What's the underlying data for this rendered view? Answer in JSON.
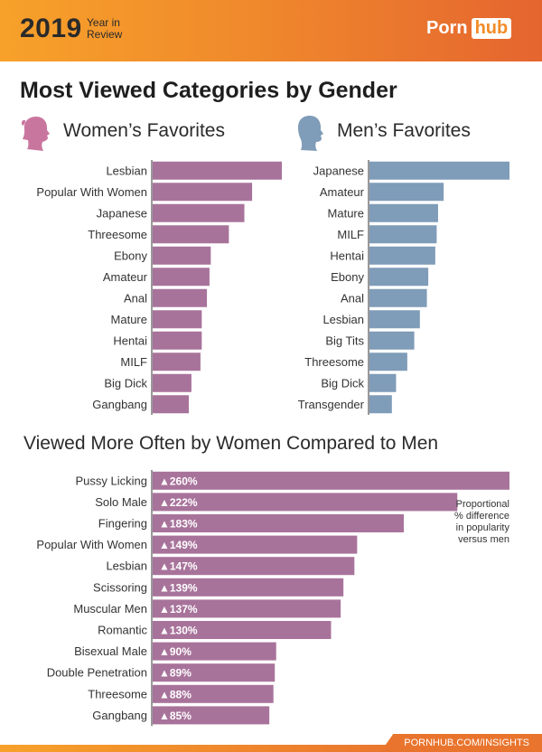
{
  "header": {
    "year": "2019",
    "subtitle_line1": "Year in",
    "subtitle_line2": "Review",
    "logo_text": "Porn",
    "logo_badge": "hub"
  },
  "title": "Most Viewed Categories by Gender",
  "colors": {
    "women_bar": "#a8739b",
    "men_bar": "#7f9cb8",
    "diff_bar": "#a8739b",
    "women_icon": "#c9769f",
    "men_icon": "#7f9cb8",
    "accent": "#f28c28"
  },
  "women_panel": {
    "label": "Women’s Favorites",
    "icon": "woman-head-icon"
  },
  "men_panel": {
    "label": "Men’s Favorites",
    "icon": "man-head-icon"
  },
  "section2_title": "Viewed More Often by Women Compared to Men",
  "note": [
    "Proportional",
    "% difference",
    "in popularity",
    "versus men"
  ],
  "footer": {
    "link": "PORNHUB.COM/INSIGHTS"
  },
  "chart_data": [
    {
      "type": "bar",
      "orientation": "horizontal",
      "series_name": "Women’s Favorites",
      "categories": [
        "Lesbian",
        "Popular With Women",
        "Japanese",
        "Threesome",
        "Ebony",
        "Amateur",
        "Anal",
        "Mature",
        "Hentai",
        "MILF",
        "Big Dick",
        "Gangbang"
      ],
      "values": [
        100,
        77,
        71,
        59,
        45,
        44,
        42,
        38,
        38,
        37,
        30,
        28
      ]
    },
    {
      "type": "bar",
      "orientation": "horizontal",
      "series_name": "Men’s Favorites",
      "categories": [
        "Japanese",
        "Amateur",
        "Mature",
        "MILF",
        "Hentai",
        "Ebony",
        "Anal",
        "Lesbian",
        "Big Tits",
        "Threesome",
        "Big Dick",
        "Transgender"
      ],
      "values": [
        100,
        53,
        49,
        48,
        47,
        42,
        41,
        36,
        32,
        27,
        19,
        16
      ]
    },
    {
      "type": "bar",
      "orientation": "horizontal",
      "series_name": "Viewed More Often by Women Compared to Men",
      "categories": [
        "Pussy Licking",
        "Solo Male",
        "Fingering",
        "Popular With Women",
        "Lesbian",
        "Scissoring",
        "Muscular Men",
        "Romantic",
        "Bisexual Male",
        "Double Penetration",
        "Threesome",
        "Gangbang"
      ],
      "values": [
        260,
        222,
        183,
        149,
        147,
        139,
        137,
        130,
        90,
        89,
        88,
        85
      ],
      "value_labels": [
        "▲260%",
        "▲222%",
        "▲183%",
        "▲149%",
        "▲147%",
        "▲139%",
        "▲137%",
        "▲130%",
        "▲90%",
        "▲89%",
        "▲88%",
        "▲85%"
      ]
    }
  ]
}
